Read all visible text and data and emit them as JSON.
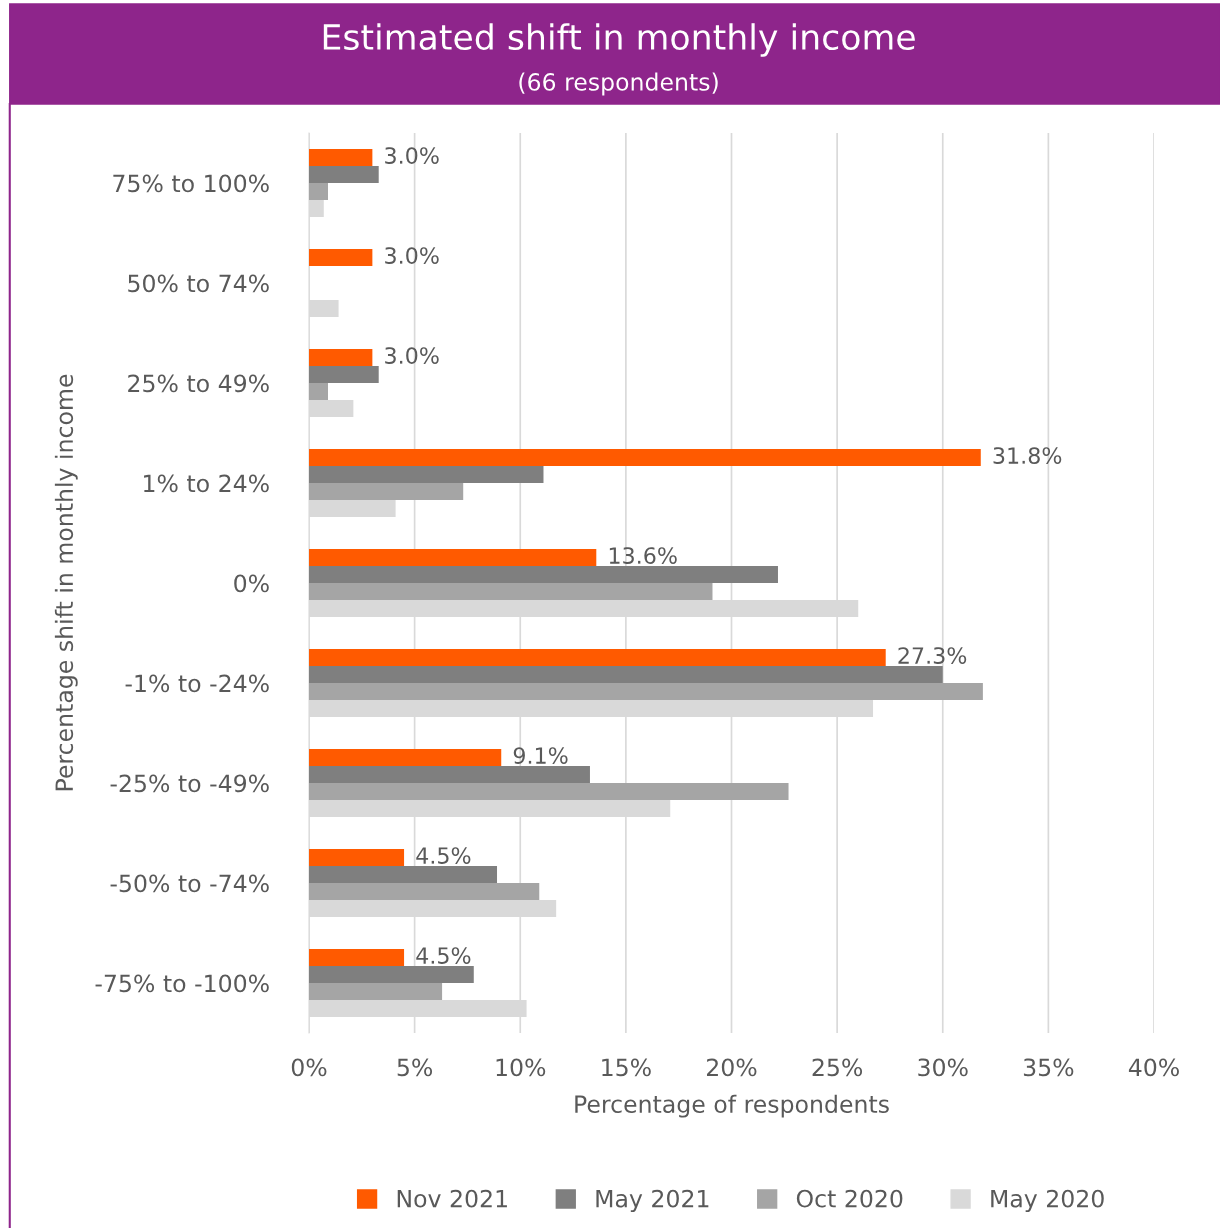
{
  "chart_data": {
    "type": "bar",
    "orientation": "horizontal",
    "title": "Estimated shift in monthly income",
    "subtitle": "(66 respondents)",
    "xlabel": "Percentage of respondents",
    "ylabel": "Percentage shift in monthly income",
    "categories": [
      "75% to 100%",
      "50% to 74%",
      "25% to 49%",
      "1% to 24%",
      "0%",
      "-1% to -24%",
      "-25% to -49%",
      "-50% to -74%",
      "-75% to -100%"
    ],
    "series": [
      {
        "name": "Nov 2021",
        "color": "#ff5a00",
        "values": [
          3.0,
          3.0,
          3.0,
          31.8,
          13.6,
          27.3,
          9.1,
          4.5,
          4.5
        ],
        "value_labels": [
          "3.0%",
          "3.0%",
          "3.0%",
          "31.8%",
          "13.6%",
          "27.3%",
          "9.1%",
          "4.5%",
          "4.5%"
        ]
      },
      {
        "name": "May 2021",
        "color": "#7f7f7f",
        "values": [
          3.3,
          null,
          3.3,
          11.1,
          22.2,
          30.0,
          13.3,
          8.9,
          7.8
        ]
      },
      {
        "name": "Oct 2020",
        "color": "#a5a5a5",
        "values": [
          0.9,
          null,
          0.9,
          7.3,
          19.1,
          31.9,
          22.7,
          10.9,
          6.3
        ]
      },
      {
        "name": "May 2020",
        "color": "#d9d9d9",
        "values": [
          0.7,
          1.4,
          2.1,
          4.1,
          26.0,
          26.7,
          17.1,
          11.7,
          10.3
        ]
      }
    ],
    "xlim": [
      0,
      40
    ],
    "xticks": [
      {
        "value": 0,
        "label": "0%"
      },
      {
        "value": 5,
        "label": "5%"
      },
      {
        "value": 10,
        "label": "10%"
      },
      {
        "value": 15,
        "label": "15%"
      },
      {
        "value": 20,
        "label": "20%"
      },
      {
        "value": 25,
        "label": "25%"
      },
      {
        "value": 30,
        "label": "30%"
      },
      {
        "value": 35,
        "label": "35%"
      },
      {
        "value": 40,
        "label": "40%"
      }
    ],
    "grid": "x",
    "legend": "bottom"
  }
}
